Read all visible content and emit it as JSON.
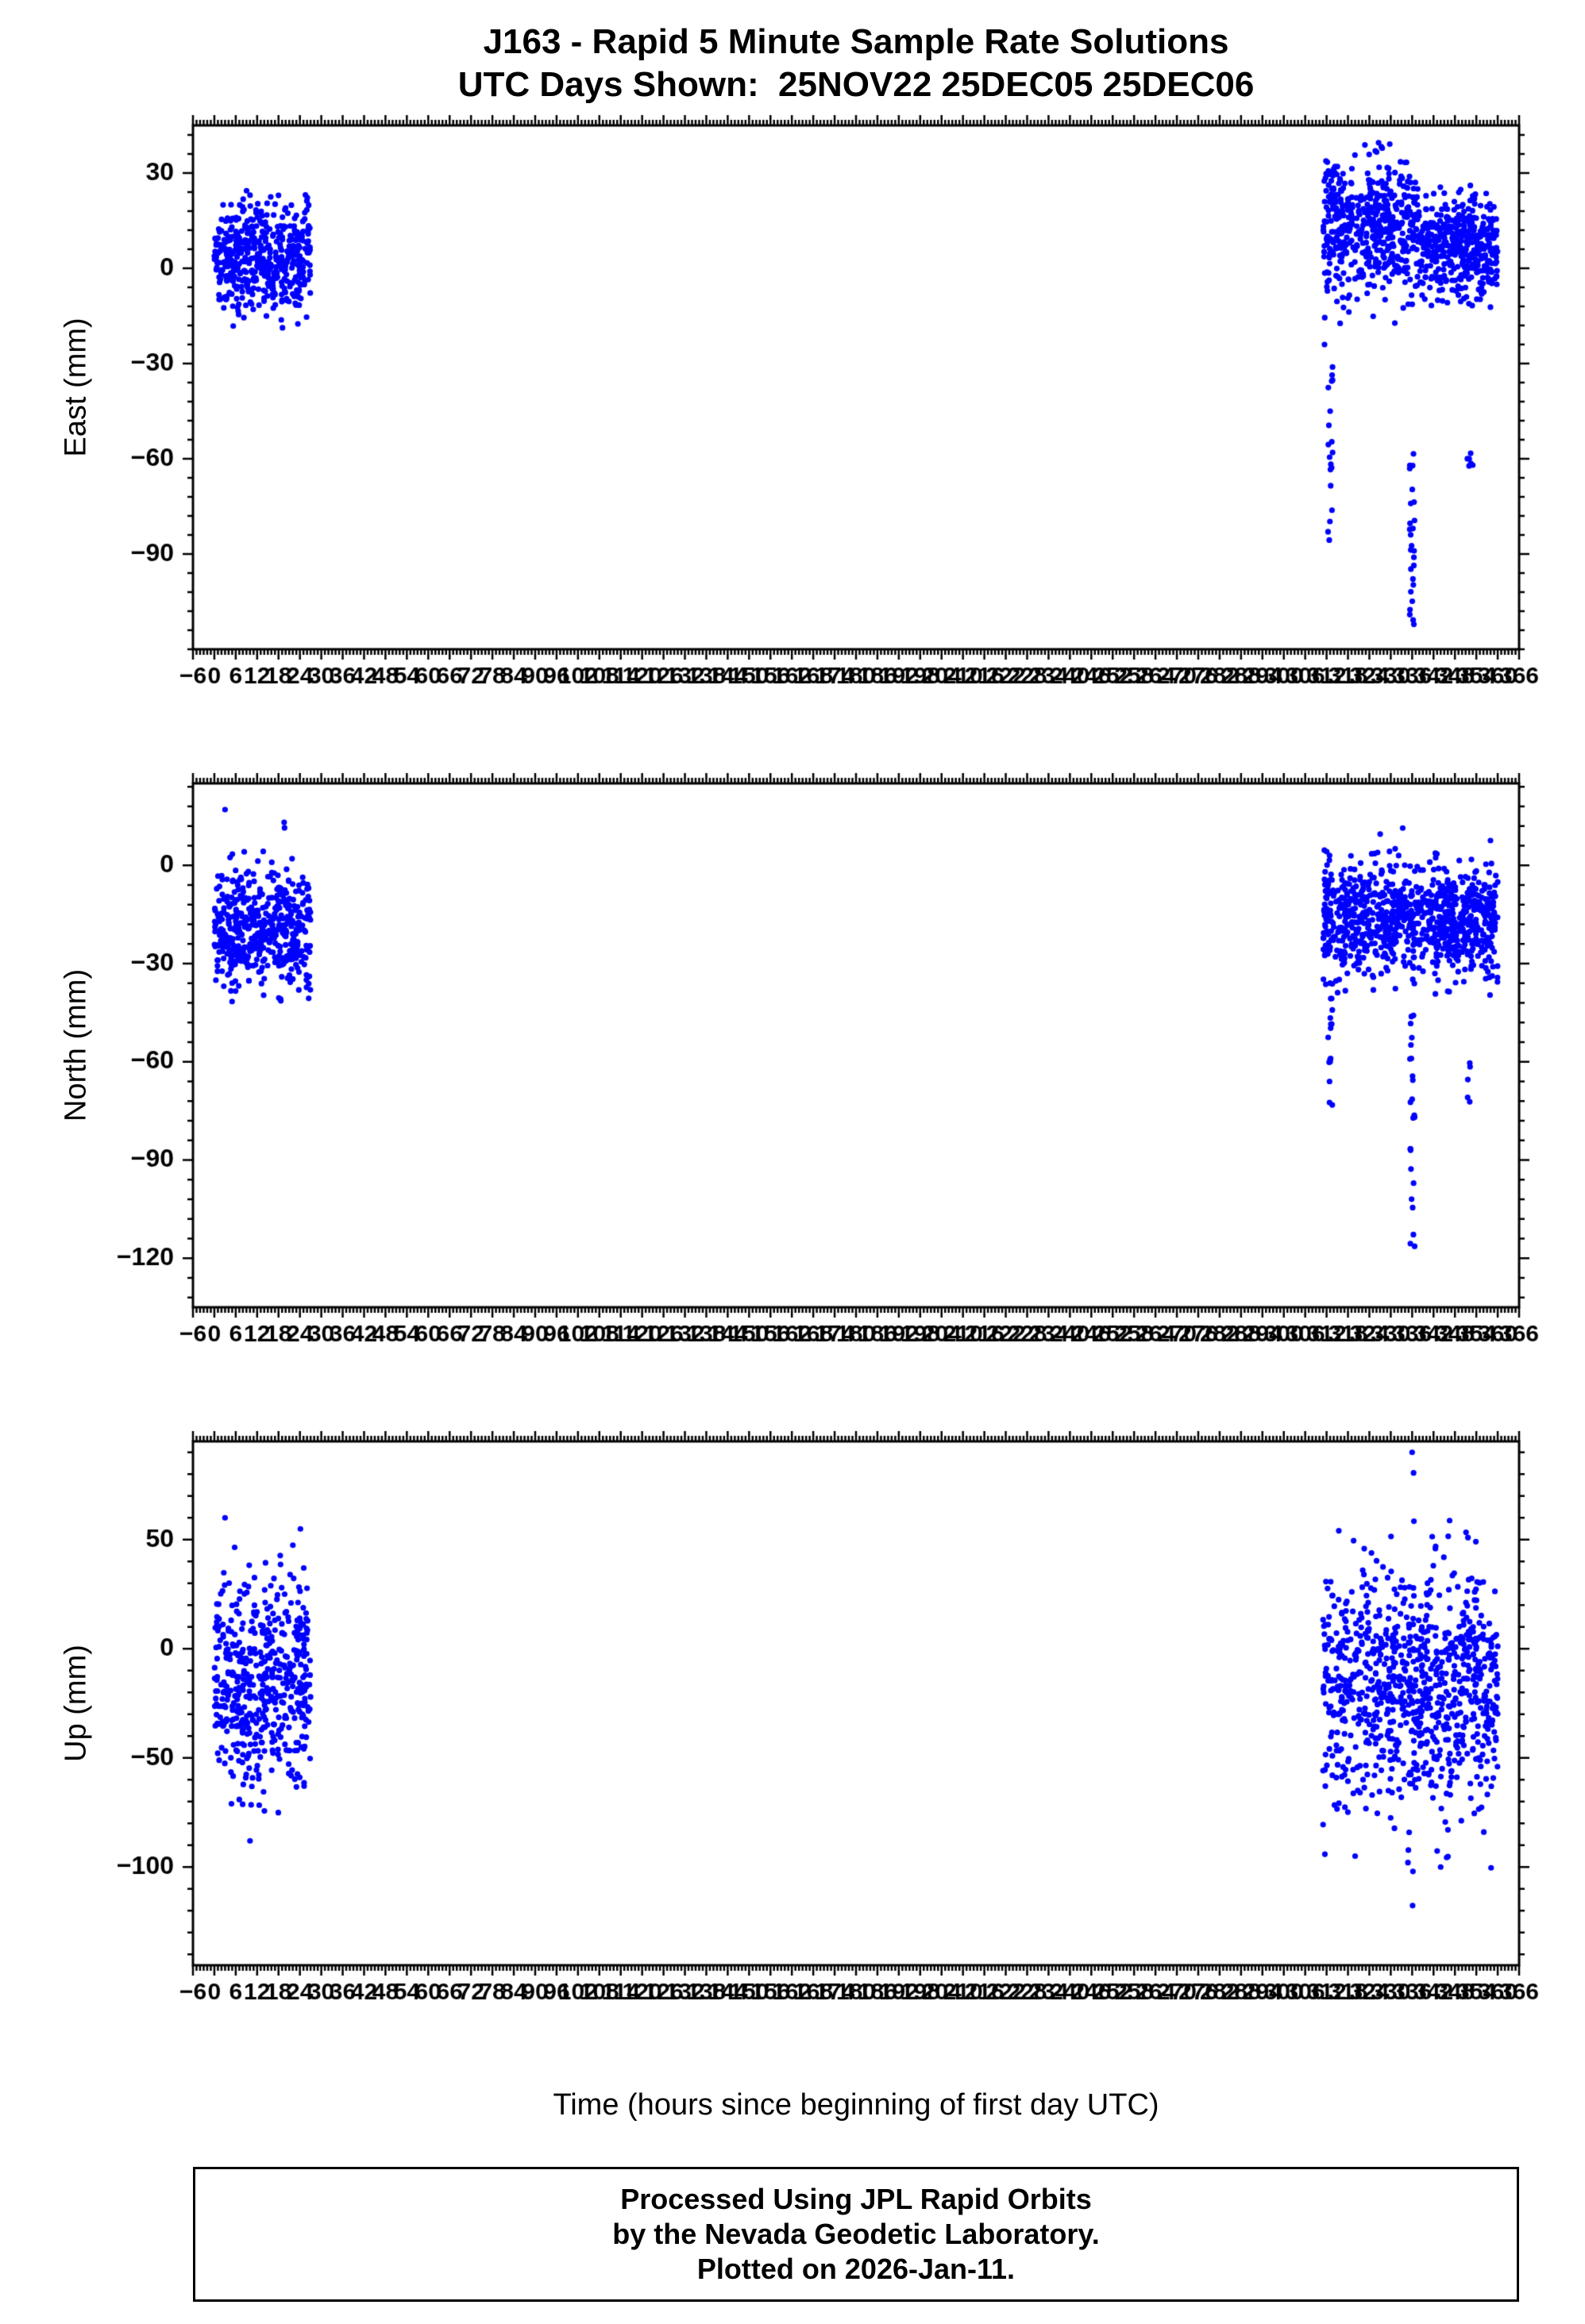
{
  "chart_data": {
    "type": "scatter",
    "title": "J163 - Rapid 5 Minute Sample Rate Solutions",
    "subtitle": "UTC Days Shown:  25NOV22 25DEC05 25DEC06",
    "point_color": "#0000ff",
    "grid": false,
    "legend": "none",
    "xaxis": {
      "label": "Time (hours since beginning of first day UTC)",
      "min": -6,
      "max": 366,
      "major": 6,
      "minor": 1
    },
    "panels": [
      {
        "id": "east",
        "ylabel": "East (mm)",
        "ymin": -120,
        "ymax": 45,
        "yticks": [
          30,
          0,
          -30,
          -60,
          -90
        ],
        "yminor": 6,
        "clusters": [
          {
            "x0": 0,
            "x1": 27,
            "n": 520,
            "mean": 3,
            "std": 9,
            "lo": -24,
            "hi": 28
          },
          {
            "x0": 311,
            "x1": 338,
            "n": 520,
            "mean": 12,
            "std": 11,
            "lo": -28,
            "hi": 40
          },
          {
            "x0": 338,
            "x1": 360,
            "n": 420,
            "mean": 6,
            "std": 8,
            "lo": -18,
            "hi": 28
          }
        ],
        "streaks": [
          {
            "x": 313,
            "n": 18,
            "lo": -88,
            "hi": -30
          },
          {
            "x": 336,
            "n": 26,
            "lo": -113,
            "hi": -58
          },
          {
            "x": 352,
            "n": 4,
            "lo": -64,
            "hi": -58
          }
        ],
        "points": [
          [
            313,
            -45
          ],
          [
            352,
            -60
          ],
          [
            353,
            -62
          ]
        ]
      },
      {
        "id": "north",
        "ylabel": "North (mm)",
        "ymin": -135,
        "ymax": 25,
        "yticks": [
          0,
          -30,
          -60,
          -90,
          -120
        ],
        "yminor": 6,
        "clusters": [
          {
            "x0": 0,
            "x1": 27,
            "n": 520,
            "mean": -20,
            "std": 9,
            "lo": -42,
            "hi": 15
          },
          {
            "x0": 311,
            "x1": 360,
            "n": 900,
            "mean": -17,
            "std": 9,
            "lo": -40,
            "hi": 18
          }
        ],
        "streaks": [
          {
            "x": 313,
            "n": 16,
            "lo": -75,
            "hi": -35
          },
          {
            "x": 336,
            "n": 24,
            "lo": -122,
            "hi": -40
          },
          {
            "x": 352,
            "n": 5,
            "lo": -75,
            "hi": -55
          }
        ],
        "points": [
          [
            3,
            17
          ],
          [
            313,
            -60
          ]
        ]
      },
      {
        "id": "up",
        "ylabel": "Up (mm)",
        "ymin": -145,
        "ymax": 95,
        "yticks": [
          50,
          0,
          -50,
          -100
        ],
        "yminor": 10,
        "clusters": [
          {
            "x0": 0,
            "x1": 27,
            "n": 520,
            "mean": -15,
            "std": 25,
            "lo": -92,
            "hi": 62
          },
          {
            "x0": 311,
            "x1": 360,
            "n": 900,
            "mean": -18,
            "std": 27,
            "lo": -105,
            "hi": 78
          }
        ],
        "streaks": [
          {
            "x": 336,
            "n": 12,
            "lo": -135,
            "hi": 90
          },
          {
            "x": 346,
            "n": 5,
            "lo": -100,
            "hi": -60
          }
        ],
        "points": [
          [
            10,
            -88
          ],
          [
            3,
            60
          ],
          [
            336,
            90
          ],
          [
            344,
            -100
          ],
          [
            320,
            -95
          ]
        ]
      }
    ]
  },
  "footer": {
    "line1": "Processed Using JPL Rapid Orbits",
    "line2": "by the Nevada Geodetic Laboratory.",
    "line3": "Plotted on 2026-Jan-11."
  }
}
